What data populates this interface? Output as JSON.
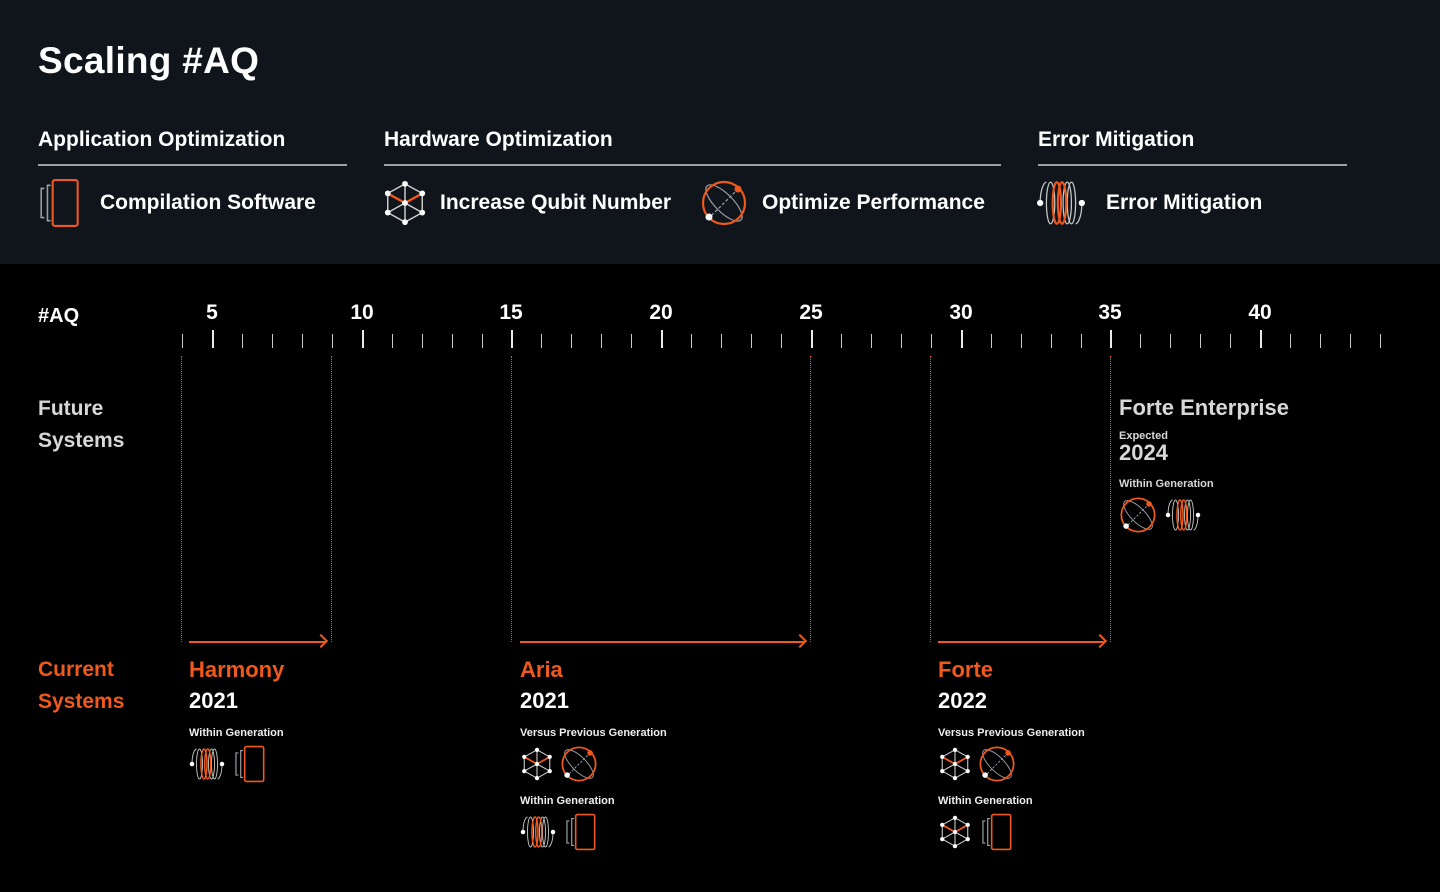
{
  "header": {
    "title": "Scaling #AQ",
    "categories": [
      {
        "label": "Application Optimization"
      },
      {
        "label": "Hardware Optimization"
      },
      {
        "label": "Error Mitigation"
      }
    ],
    "legend": [
      {
        "icon": "compilation-software-icon",
        "label": "Compilation Software"
      },
      {
        "icon": "increase-qubit-number-icon",
        "label": "Increase Qubit Number"
      },
      {
        "icon": "optimize-performance-icon",
        "label": "Optimize Performance"
      },
      {
        "icon": "error-mitigation-icon",
        "label": "Error Mitigation"
      }
    ]
  },
  "axis": {
    "label": "#AQ",
    "min": 4,
    "max": 44,
    "major_ticks": [
      "5",
      "10",
      "15",
      "20",
      "25",
      "30",
      "35",
      "40"
    ]
  },
  "rows": {
    "future": "Future Systems",
    "future_line1": "Future",
    "future_line2": "Systems",
    "current": "Current Systems",
    "current_line1": "Current",
    "current_line2": "Systems"
  },
  "current_systems": [
    {
      "name": "Harmony",
      "year": "2021",
      "aq_start": 4,
      "aq_end": 9,
      "groups": [
        {
          "label": "Within Generation",
          "icons": [
            "error-mitigation-icon",
            "compilation-software-icon"
          ]
        }
      ]
    },
    {
      "name": "Aria",
      "year": "2021",
      "aq_start": 15,
      "aq_end": 25,
      "groups": [
        {
          "label": "Versus Previous Generation",
          "icons": [
            "increase-qubit-number-icon",
            "optimize-performance-icon"
          ]
        },
        {
          "label": "Within Generation",
          "icons": [
            "error-mitigation-icon",
            "compilation-software-icon"
          ]
        }
      ]
    },
    {
      "name": "Forte",
      "year": "2022",
      "aq_start": 29,
      "aq_end": 35,
      "groups": [
        {
          "label": "Versus Previous Generation",
          "icons": [
            "increase-qubit-number-icon",
            "optimize-performance-icon"
          ]
        },
        {
          "label": "Within Generation",
          "icons": [
            "increase-qubit-number-icon",
            "compilation-software-icon"
          ]
        }
      ]
    }
  ],
  "future_systems": [
    {
      "name": "Forte Enterprise",
      "expected_label": "Expected",
      "year": "2024",
      "aq_start": 35,
      "groups": [
        {
          "label": "Within Generation",
          "icons": [
            "optimize-performance-icon",
            "error-mitigation-icon"
          ]
        }
      ]
    }
  ],
  "colors": {
    "accent": "#f0591c",
    "header_bg": "#10151c",
    "body_bg": "#000000",
    "text": "#ffffff",
    "muted_text": "#d8d8d8",
    "rule": "#9aa0a6"
  }
}
